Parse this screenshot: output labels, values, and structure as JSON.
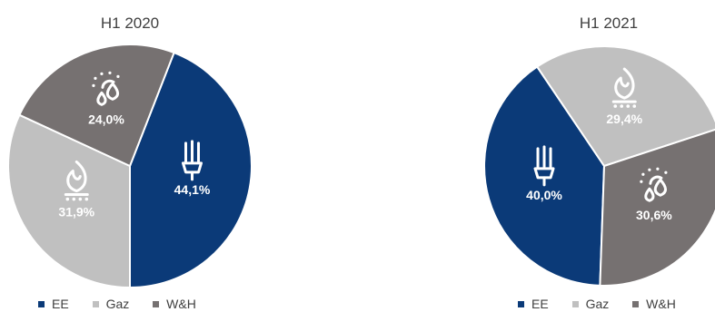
{
  "chart_data": [
    {
      "type": "pie",
      "title": "H1 2020",
      "categories": [
        "EE",
        "Gaz",
        "W&H"
      ],
      "values": [
        44.1,
        31.9,
        24.0
      ],
      "labels": [
        "44,1%",
        "31,9%",
        "24,0%"
      ],
      "colors": [
        "#0b3a78",
        "#c0c0c0",
        "#767171"
      ],
      "icons": [
        "light-bulb-icon",
        "gas-flame-icon",
        "water-heat-icon"
      ],
      "legend": "bottom"
    },
    {
      "type": "pie",
      "title": "H1 2021",
      "categories": [
        "EE",
        "Gaz",
        "W&H"
      ],
      "values": [
        40.0,
        29.4,
        30.6
      ],
      "labels": [
        "40,0%",
        "29,4%",
        "30,6%"
      ],
      "colors": [
        "#0b3a78",
        "#c0c0c0",
        "#767171"
      ],
      "icons": [
        "light-bulb-icon",
        "gas-flame-icon",
        "water-heat-icon"
      ],
      "legend": "bottom"
    }
  ]
}
